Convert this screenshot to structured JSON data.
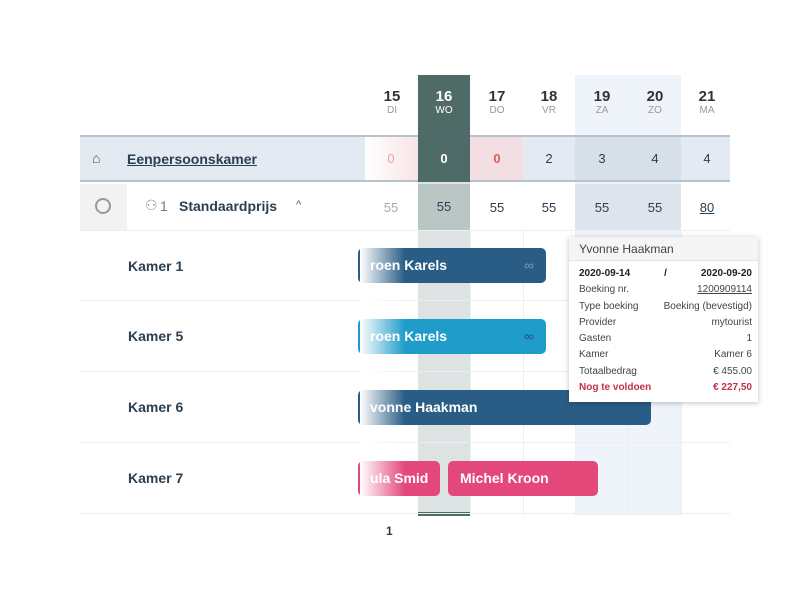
{
  "days": [
    {
      "num": "15",
      "dow": "DI"
    },
    {
      "num": "16",
      "dow": "WO"
    },
    {
      "num": "17",
      "dow": "DO"
    },
    {
      "num": "18",
      "dow": "VR"
    },
    {
      "num": "19",
      "dow": "ZA"
    },
    {
      "num": "20",
      "dow": "ZO"
    },
    {
      "num": "21",
      "dow": "MA"
    }
  ],
  "room_type": {
    "name": "Eenpersoonskamer",
    "icon": "door-icon",
    "availability": [
      "0",
      "0",
      "0",
      "2",
      "3",
      "4",
      "4"
    ]
  },
  "rate": {
    "guests": "1",
    "name": "Standaardprijs",
    "prices": [
      "55",
      "55",
      "55",
      "55",
      "55",
      "55",
      "80"
    ]
  },
  "rooms": [
    "Kamer 1",
    "Kamer 5",
    "Kamer 6",
    "Kamer 7"
  ],
  "bookings": [
    {
      "guest": "roen Karels",
      "color": "#2a5d85"
    },
    {
      "guest": "roen Karels",
      "color": "#1f9cc9"
    },
    {
      "guest": "vonne Haakman",
      "color": "#2a5d85"
    },
    {
      "guest": "ula Smid",
      "color": "#e4487a"
    },
    {
      "guest": "Michel Kroon",
      "color": "#e4487a"
    }
  ],
  "tooltip": {
    "title": "Yvonne Haakman",
    "from": "2020-09-14",
    "sep": "/",
    "to": "2020-09-20",
    "rows": [
      {
        "label": "Boeking nr.",
        "value": "1200909114"
      },
      {
        "label": "Type boeking",
        "value": "Boeking (bevestigd)"
      },
      {
        "label": "Provider",
        "value": "mytourist"
      },
      {
        "label": "Gasten",
        "value": "1"
      },
      {
        "label": "Kamer",
        "value": "Kamer 6"
      },
      {
        "label": "Totaalbedrag",
        "value": "€ 455.00"
      }
    ],
    "due_label": "Nog te voldoen",
    "due_value": "€ 227,50"
  },
  "footer_num": "1",
  "colors": {
    "today": "#4f6b67",
    "weekend": "#eef4fa",
    "alert": "#e05a5a",
    "due": "#c0304a"
  }
}
